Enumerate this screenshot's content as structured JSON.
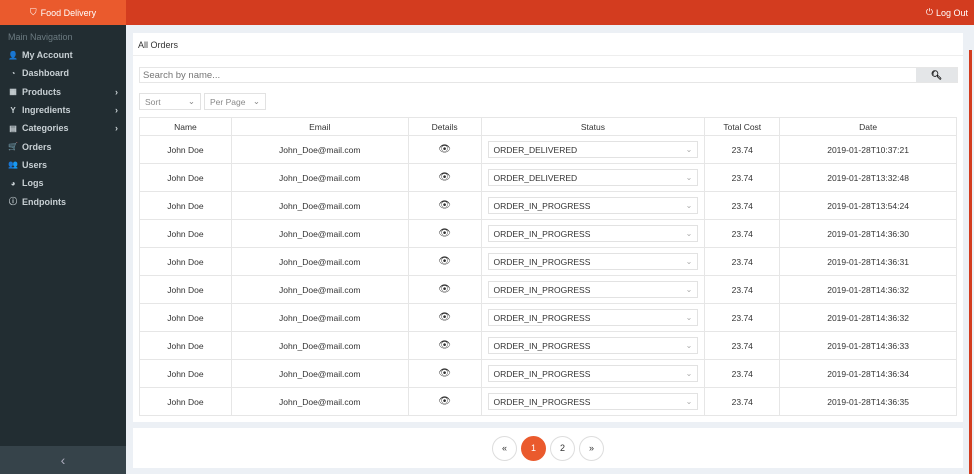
{
  "header": {
    "brand": "Food Delivery",
    "logout": "Log Out"
  },
  "sidebar": {
    "heading": "Main Navigation",
    "items": [
      {
        "label": "My Account",
        "icon": "user-icon",
        "glyph": "👤",
        "sub": false
      },
      {
        "label": "Dashboard",
        "icon": "dashboard-icon",
        "glyph": "◔",
        "sub": false
      },
      {
        "label": "Products",
        "icon": "box-icon",
        "glyph": "▦",
        "sub": true
      },
      {
        "label": "Ingredients",
        "icon": "cocktail-icon",
        "glyph": "Y",
        "sub": true
      },
      {
        "label": "Categories",
        "icon": "list-icon",
        "glyph": "▤",
        "sub": true
      },
      {
        "label": "Orders",
        "icon": "cart-icon",
        "glyph": "🛒",
        "sub": false
      },
      {
        "label": "Users",
        "icon": "users-icon",
        "glyph": "👥",
        "sub": false
      },
      {
        "label": "Logs",
        "icon": "chart-pie-icon",
        "glyph": "◕",
        "sub": false
      },
      {
        "label": "Endpoints",
        "icon": "info-icon",
        "glyph": "ⓘ",
        "sub": false
      }
    ]
  },
  "main": {
    "title": "All Orders",
    "search_placeholder": "Search by name...",
    "sort": "Sort",
    "per_page": "Per Page",
    "columns": [
      "Name",
      "Email",
      "Details",
      "Status",
      "Total Cost",
      "Date"
    ],
    "rows": [
      {
        "name": "John Doe",
        "email": "John_Doe@mail.com",
        "status": "ORDER_DELIVERED",
        "cost": "23.74",
        "date": "2019-01-28T10:37:21"
      },
      {
        "name": "John Doe",
        "email": "John_Doe@mail.com",
        "status": "ORDER_DELIVERED",
        "cost": "23.74",
        "date": "2019-01-28T13:32:48"
      },
      {
        "name": "John Doe",
        "email": "John_Doe@mail.com",
        "status": "ORDER_IN_PROGRESS",
        "cost": "23.74",
        "date": "2019-01-28T13:54:24"
      },
      {
        "name": "John Doe",
        "email": "John_Doe@mail.com",
        "status": "ORDER_IN_PROGRESS",
        "cost": "23.74",
        "date": "2019-01-28T14:36:30"
      },
      {
        "name": "John Doe",
        "email": "John_Doe@mail.com",
        "status": "ORDER_IN_PROGRESS",
        "cost": "23.74",
        "date": "2019-01-28T14:36:31"
      },
      {
        "name": "John Doe",
        "email": "John_Doe@mail.com",
        "status": "ORDER_IN_PROGRESS",
        "cost": "23.74",
        "date": "2019-01-28T14:36:32"
      },
      {
        "name": "John Doe",
        "email": "John_Doe@mail.com",
        "status": "ORDER_IN_PROGRESS",
        "cost": "23.74",
        "date": "2019-01-28T14:36:32"
      },
      {
        "name": "John Doe",
        "email": "John_Doe@mail.com",
        "status": "ORDER_IN_PROGRESS",
        "cost": "23.74",
        "date": "2019-01-28T14:36:33"
      },
      {
        "name": "John Doe",
        "email": "John_Doe@mail.com",
        "status": "ORDER_IN_PROGRESS",
        "cost": "23.74",
        "date": "2019-01-28T14:36:34"
      },
      {
        "name": "John Doe",
        "email": "John_Doe@mail.com",
        "status": "ORDER_IN_PROGRESS",
        "cost": "23.74",
        "date": "2019-01-28T14:36:35"
      }
    ]
  },
  "pagination": {
    "prev": "«",
    "pages": [
      "1",
      "2"
    ],
    "active": "1",
    "next": "»"
  },
  "colors": {
    "accent": "#ea5a2d",
    "topbar": "#d33c1f",
    "sidebar": "#222d32"
  }
}
